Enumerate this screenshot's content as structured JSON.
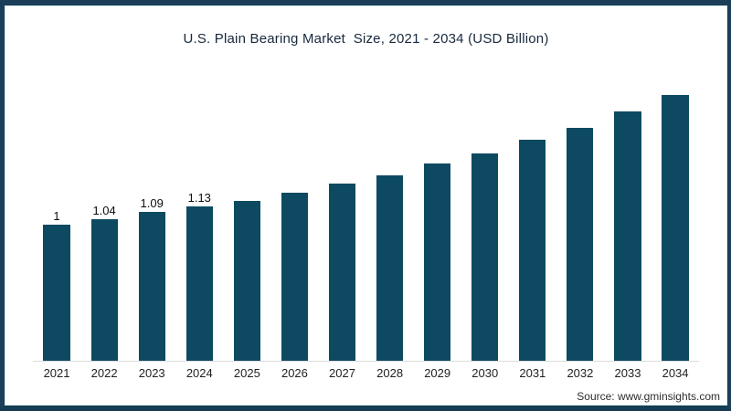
{
  "title": "U.S. Plain Bearing Market  Size, 2021 - 2034 (USD Billion)",
  "source": "Source: www.gminsights.com",
  "colors": {
    "bar": "#0d4a61",
    "frame_border": "#1c3e59",
    "axis_line": "#dddddd",
    "title_text": "#17293c",
    "label_text": "#0c0c0c",
    "source_text": "#2e2e2e",
    "background": "#ffffff"
  },
  "chart_data": {
    "type": "bar",
    "title": "U.S. Plain Bearing Market  Size, 2021 - 2034 (USD Billion)",
    "xlabel": "",
    "ylabel": "",
    "ylim": [
      0,
      2.05
    ],
    "grid": false,
    "legend": false,
    "categories": [
      "2021",
      "2022",
      "2023",
      "2024",
      "2025",
      "2026",
      "2027",
      "2028",
      "2029",
      "2030",
      "2031",
      "2032",
      "2033",
      "2034"
    ],
    "values": [
      1,
      1.04,
      1.09,
      1.13,
      1.17,
      1.23,
      1.3,
      1.36,
      1.45,
      1.52,
      1.62,
      1.71,
      1.83,
      1.95
    ],
    "value_labels_shown": [
      "1",
      "1.04",
      "1.09",
      "1.13",
      null,
      null,
      null,
      null,
      null,
      null,
      null,
      null,
      null,
      null
    ]
  }
}
